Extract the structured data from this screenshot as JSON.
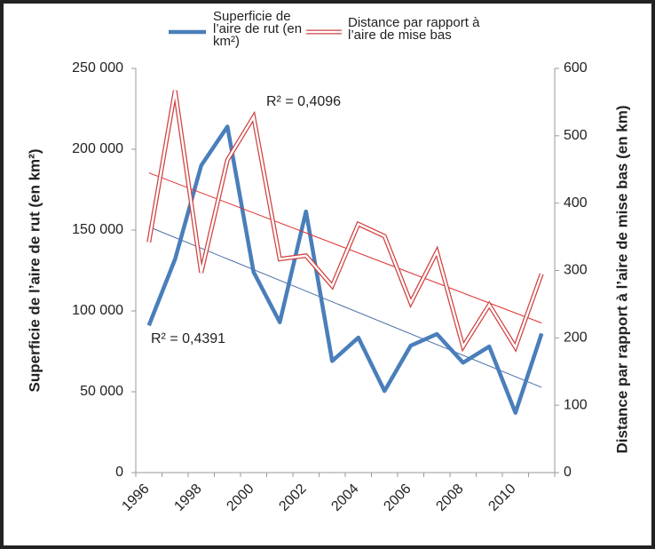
{
  "chart_data": {
    "type": "line",
    "categories": [
      "1996",
      null,
      "1998",
      null,
      "2000",
      null,
      "2002",
      null,
      "2004",
      null,
      "2006",
      null,
      "2008",
      null,
      "2010",
      null
    ],
    "y_label": "Superficie de l’aire de rut (en km²)",
    "y2_label": "Distance par rapport à l’aire de mise bas (en km)",
    "ylim": [
      0,
      250000
    ],
    "yticks": [
      {
        "value": 0,
        "label": "0"
      },
      {
        "value": 50000,
        "label": "50 000"
      },
      {
        "value": 100000,
        "label": "100 000"
      },
      {
        "value": 150000,
        "label": "150 000"
      },
      {
        "value": 200000,
        "label": "200 000"
      },
      {
        "value": 250000,
        "label": "250 000"
      }
    ],
    "y2lim": [
      0,
      600
    ],
    "y2ticks": [
      0,
      100,
      200,
      300,
      400,
      500,
      600
    ],
    "legend": "top",
    "series": [
      {
        "name": "Superficie de l’aire de rut (en km²)",
        "color": "#4a7ebb",
        "line_style": "solid",
        "values": [
          91000,
          132000,
          190000,
          214000,
          124000,
          93000,
          161500,
          69000,
          83500,
          50500,
          78500,
          85700,
          68000,
          78000,
          37000,
          86000
        ],
        "trend": {
          "values": [
            152000,
            52700
          ],
          "label": "R² = 0,4391",
          "color": "#4a6fa5"
        }
      },
      {
        "name": "Distance par rapport à l’aire de mise bas",
        "color": "#d04040",
        "line_style": "double",
        "axis": "y2",
        "values": [
          342,
          567,
          297,
          464,
          528,
          317,
          322,
          277,
          369,
          351,
          252,
          328,
          187,
          249,
          186,
          295
        ],
        "trend": {
          "values": [
            445,
            222
          ],
          "label": "R² = 0,4096",
          "color": "#e03030"
        }
      }
    ]
  }
}
